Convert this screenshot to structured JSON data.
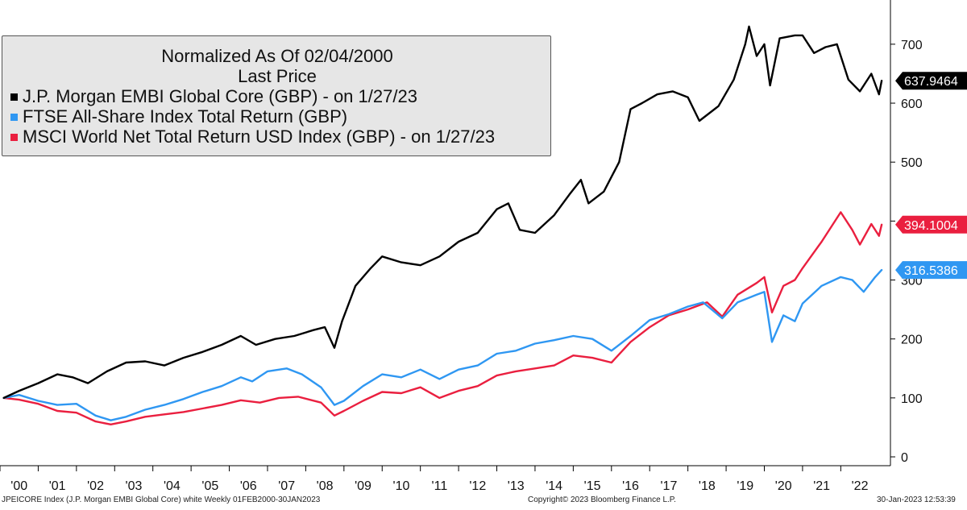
{
  "chart_data": {
    "type": "line",
    "legend": {
      "title_line1": "Normalized As Of 02/04/2000",
      "title_line2": "Last Price",
      "placement": "top-left"
    },
    "x_tick_labels": [
      "'00",
      "'01",
      "'02",
      "'03",
      "'04",
      "'05",
      "'06",
      "'07",
      "'08",
      "'09",
      "'10",
      "'11",
      "'12",
      "'13",
      "'14",
      "'15",
      "'16",
      "'17",
      "'18",
      "'19",
      "'20",
      "'21",
      "'22"
    ],
    "y_ticks": [
      0,
      100,
      200,
      300,
      400,
      500,
      600,
      700
    ],
    "ylim": [
      -15,
      775
    ],
    "xlim": [
      2000.0,
      2023.3
    ],
    "grid": false,
    "series": [
      {
        "name": "J.P. Morgan EMBI Global Core (GBP) -  on 1/27/23",
        "color": "#000000",
        "last_label": "637.9464",
        "points": [
          [
            2000.1,
            100
          ],
          [
            2000.5,
            112
          ],
          [
            2001.0,
            125
          ],
          [
            2001.5,
            140
          ],
          [
            2001.9,
            135
          ],
          [
            2002.3,
            125
          ],
          [
            2002.8,
            145
          ],
          [
            2003.3,
            160
          ],
          [
            2003.8,
            162
          ],
          [
            2004.3,
            155
          ],
          [
            2004.8,
            168
          ],
          [
            2005.3,
            178
          ],
          [
            2005.8,
            190
          ],
          [
            2006.3,
            205
          ],
          [
            2006.7,
            190
          ],
          [
            2007.2,
            200
          ],
          [
            2007.7,
            205
          ],
          [
            2008.2,
            215
          ],
          [
            2008.5,
            220
          ],
          [
            2008.75,
            185
          ],
          [
            2008.95,
            230
          ],
          [
            2009.3,
            290
          ],
          [
            2009.7,
            320
          ],
          [
            2010.0,
            340
          ],
          [
            2010.5,
            330
          ],
          [
            2011.0,
            325
          ],
          [
            2011.5,
            340
          ],
          [
            2012.0,
            365
          ],
          [
            2012.5,
            380
          ],
          [
            2013.0,
            420
          ],
          [
            2013.3,
            430
          ],
          [
            2013.6,
            385
          ],
          [
            2014.0,
            380
          ],
          [
            2014.5,
            410
          ],
          [
            2014.9,
            445
          ],
          [
            2015.2,
            470
          ],
          [
            2015.4,
            430
          ],
          [
            2015.8,
            450
          ],
          [
            2016.2,
            500
          ],
          [
            2016.5,
            590
          ],
          [
            2016.8,
            600
          ],
          [
            2017.2,
            615
          ],
          [
            2017.6,
            620
          ],
          [
            2018.0,
            610
          ],
          [
            2018.3,
            570
          ],
          [
            2018.8,
            595
          ],
          [
            2019.2,
            640
          ],
          [
            2019.5,
            700
          ],
          [
            2019.6,
            730
          ],
          [
            2019.8,
            680
          ],
          [
            2020.0,
            700
          ],
          [
            2020.15,
            630
          ],
          [
            2020.4,
            710
          ],
          [
            2020.8,
            715
          ],
          [
            2021.0,
            715
          ],
          [
            2021.3,
            685
          ],
          [
            2021.6,
            695
          ],
          [
            2021.9,
            700
          ],
          [
            2022.2,
            640
          ],
          [
            2022.5,
            620
          ],
          [
            2022.8,
            650
          ],
          [
            2023.0,
            615
          ],
          [
            2023.07,
            638
          ]
        ]
      },
      {
        "name": "FTSE All-Share Index Total Return (GBP)",
        "color": "#2f97f2",
        "last_label": "316.5386",
        "points": [
          [
            2000.1,
            100
          ],
          [
            2000.5,
            105
          ],
          [
            2001.0,
            95
          ],
          [
            2001.5,
            88
          ],
          [
            2002.0,
            90
          ],
          [
            2002.5,
            70
          ],
          [
            2002.9,
            62
          ],
          [
            2003.3,
            68
          ],
          [
            2003.8,
            80
          ],
          [
            2004.3,
            88
          ],
          [
            2004.8,
            98
          ],
          [
            2005.3,
            110
          ],
          [
            2005.8,
            120
          ],
          [
            2006.3,
            135
          ],
          [
            2006.6,
            128
          ],
          [
            2007.0,
            145
          ],
          [
            2007.5,
            150
          ],
          [
            2007.9,
            140
          ],
          [
            2008.4,
            118
          ],
          [
            2008.75,
            88
          ],
          [
            2009.0,
            95
          ],
          [
            2009.5,
            120
          ],
          [
            2010.0,
            140
          ],
          [
            2010.5,
            135
          ],
          [
            2011.0,
            148
          ],
          [
            2011.5,
            132
          ],
          [
            2012.0,
            148
          ],
          [
            2012.5,
            155
          ],
          [
            2013.0,
            175
          ],
          [
            2013.5,
            180
          ],
          [
            2014.0,
            192
          ],
          [
            2014.5,
            198
          ],
          [
            2015.0,
            205
          ],
          [
            2015.5,
            200
          ],
          [
            2016.0,
            180
          ],
          [
            2016.5,
            205
          ],
          [
            2017.0,
            232
          ],
          [
            2017.5,
            242
          ],
          [
            2018.0,
            255
          ],
          [
            2018.4,
            262
          ],
          [
            2018.9,
            235
          ],
          [
            2019.3,
            262
          ],
          [
            2019.8,
            275
          ],
          [
            2020.0,
            280
          ],
          [
            2020.2,
            195
          ],
          [
            2020.5,
            240
          ],
          [
            2020.8,
            230
          ],
          [
            2021.0,
            260
          ],
          [
            2021.5,
            290
          ],
          [
            2022.0,
            305
          ],
          [
            2022.3,
            300
          ],
          [
            2022.6,
            280
          ],
          [
            2022.9,
            305
          ],
          [
            2023.07,
            317
          ]
        ]
      },
      {
        "name": "MSCI World Net Total Return USD Index (GBP) -  on 1/27/23",
        "color": "#ea1f3f",
        "last_label": "394.1004",
        "points": [
          [
            2000.1,
            100
          ],
          [
            2000.5,
            97
          ],
          [
            2001.0,
            90
          ],
          [
            2001.5,
            78
          ],
          [
            2002.0,
            75
          ],
          [
            2002.5,
            60
          ],
          [
            2002.9,
            55
          ],
          [
            2003.3,
            60
          ],
          [
            2003.8,
            68
          ],
          [
            2004.3,
            72
          ],
          [
            2004.8,
            76
          ],
          [
            2005.3,
            82
          ],
          [
            2005.8,
            88
          ],
          [
            2006.3,
            96
          ],
          [
            2006.8,
            92
          ],
          [
            2007.3,
            100
          ],
          [
            2007.8,
            102
          ],
          [
            2008.4,
            92
          ],
          [
            2008.75,
            70
          ],
          [
            2009.0,
            78
          ],
          [
            2009.5,
            95
          ],
          [
            2010.0,
            110
          ],
          [
            2010.5,
            108
          ],
          [
            2011.0,
            118
          ],
          [
            2011.5,
            100
          ],
          [
            2012.0,
            112
          ],
          [
            2012.5,
            120
          ],
          [
            2013.0,
            138
          ],
          [
            2013.5,
            145
          ],
          [
            2014.0,
            150
          ],
          [
            2014.5,
            155
          ],
          [
            2015.0,
            172
          ],
          [
            2015.5,
            168
          ],
          [
            2016.0,
            160
          ],
          [
            2016.5,
            195
          ],
          [
            2017.0,
            220
          ],
          [
            2017.5,
            240
          ],
          [
            2018.0,
            250
          ],
          [
            2018.5,
            262
          ],
          [
            2018.9,
            238
          ],
          [
            2019.3,
            275
          ],
          [
            2019.8,
            295
          ],
          [
            2020.0,
            305
          ],
          [
            2020.2,
            245
          ],
          [
            2020.5,
            290
          ],
          [
            2020.8,
            300
          ],
          [
            2021.0,
            320
          ],
          [
            2021.5,
            365
          ],
          [
            2022.0,
            415
          ],
          [
            2022.3,
            385
          ],
          [
            2022.5,
            360
          ],
          [
            2022.8,
            395
          ],
          [
            2023.0,
            375
          ],
          [
            2023.07,
            394
          ]
        ]
      }
    ]
  },
  "footer": {
    "left": "JPEICORE Index (J.P. Morgan EMBI Global Core) white  Weekly 01FEB2000-30JAN2023",
    "center": "Copyright© 2023 Bloomberg Finance L.P.",
    "right": "30-Jan-2023 12:53:39"
  }
}
